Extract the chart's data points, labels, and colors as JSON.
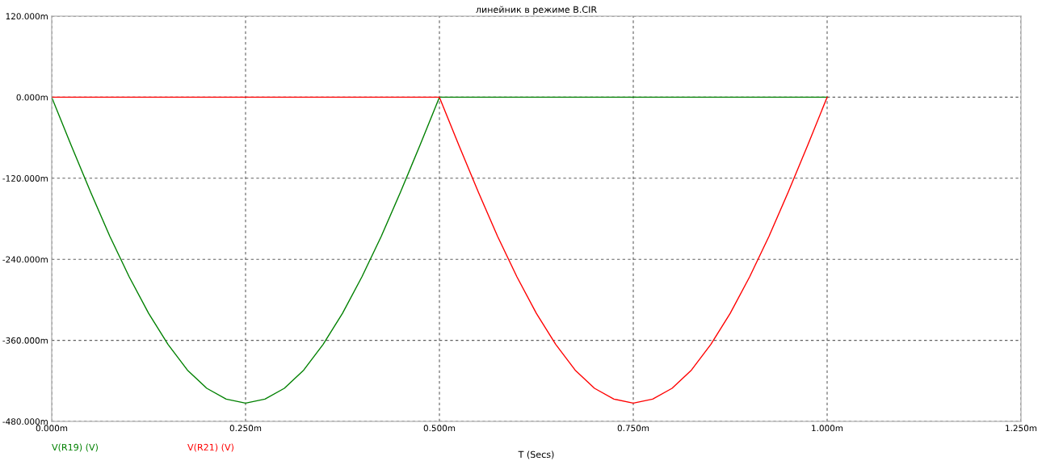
{
  "chart_data": {
    "type": "line",
    "title": "линейник в режиме B.CIR",
    "xlabel": "T (Secs)",
    "xlim": [
      0,
      1.25
    ],
    "ylim": [
      -480,
      120
    ],
    "xticks": [
      {
        "value": 0,
        "label": "0.000m"
      },
      {
        "value": 0.25,
        "label": "0.250m"
      },
      {
        "value": 0.5,
        "label": "0.500m"
      },
      {
        "value": 0.75,
        "label": "0.750m"
      },
      {
        "value": 1,
        "label": "1.000m"
      },
      {
        "value": 1.25,
        "label": "1.250m"
      }
    ],
    "yticks": [
      {
        "value": -480,
        "label": "-480.000m"
      },
      {
        "value": -360,
        "label": "-360.000m"
      },
      {
        "value": -240,
        "label": "-240.000m"
      },
      {
        "value": -120,
        "label": "-120.000m"
      },
      {
        "value": 0,
        "label": "0.000m"
      },
      {
        "value": 120,
        "label": "120.000m"
      }
    ],
    "grid": true,
    "legend": "bottom left",
    "line_style": "solid",
    "series": [
      {
        "name": "V(R19) (V)",
        "color": "#008000",
        "x": [
          0,
          0.025,
          0.05,
          0.075,
          0.1,
          0.125,
          0.15,
          0.175,
          0.2,
          0.225,
          0.25,
          0.275,
          0.3,
          0.325,
          0.35,
          0.375,
          0.4,
          0.425,
          0.45,
          0.475,
          0.5,
          1
        ],
        "values": [
          0,
          -71,
          -140,
          -206,
          -266,
          -320,
          -366,
          -404,
          -431,
          -447,
          -453,
          -447,
          -431,
          -404,
          -366,
          -320,
          -266,
          -206,
          -140,
          -71,
          0,
          0
        ]
      },
      {
        "name": "V(R21) (V)",
        "color": "#ff0000",
        "x": [
          0,
          0.5,
          0.525,
          0.55,
          0.575,
          0.6,
          0.625,
          0.65,
          0.675,
          0.7,
          0.725,
          0.75,
          0.775,
          0.8,
          0.825,
          0.85,
          0.875,
          0.9,
          0.925,
          0.95,
          0.975,
          1
        ],
        "values": [
          0,
          0,
          -71,
          -140,
          -206,
          -266,
          -320,
          -366,
          -404,
          -431,
          -447,
          -453,
          -447,
          -431,
          -404,
          -366,
          -320,
          -266,
          -206,
          -140,
          -71,
          0
        ]
      }
    ]
  }
}
